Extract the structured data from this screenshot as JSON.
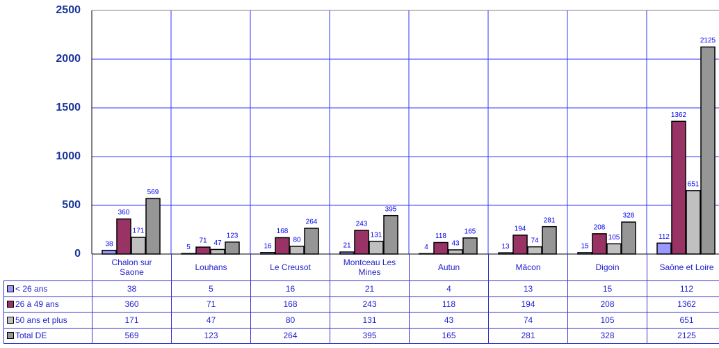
{
  "chart_data": {
    "type": "bar",
    "categories": [
      "Chalon sur Saone",
      "Louhans",
      "Le Creusot",
      "Montceau Les Mines",
      "Autun",
      "Mâcon",
      "Digoin",
      "Saône et Loire"
    ],
    "series": [
      {
        "name": "< 26 ans",
        "color": "#9999ff",
        "values": [
          38,
          5,
          16,
          21,
          4,
          13,
          15,
          112
        ]
      },
      {
        "name": "26 à 49 ans",
        "color": "#993366",
        "values": [
          360,
          71,
          168,
          243,
          118,
          194,
          208,
          1362
        ]
      },
      {
        "name": "50 ans et plus",
        "color": "#c0c0c0",
        "values": [
          171,
          47,
          80,
          131,
          43,
          74,
          105,
          651
        ]
      },
      {
        "name": "Total DE",
        "color": "#969696",
        "values": [
          569,
          123,
          264,
          395,
          165,
          281,
          328,
          2125
        ]
      }
    ],
    "ylim": [
      0,
      2500
    ],
    "yticks": [
      0,
      500,
      1000,
      1500,
      2000,
      2500
    ],
    "grid": true
  }
}
